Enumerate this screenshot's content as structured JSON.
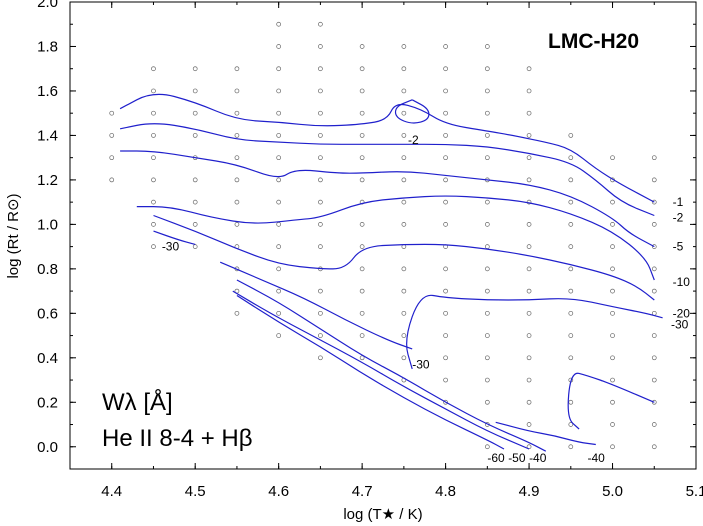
{
  "chart_data": {
    "type": "contour",
    "title": "LMC-H20",
    "xlabel": "log (T★ / K)",
    "ylabel": "log (Rt / R⊙)",
    "xlim": [
      4.35,
      5.1
    ],
    "ylim": [
      -0.1,
      2.0
    ],
    "x_ticks": [
      "4.4",
      "4.5",
      "4.6",
      "4.7",
      "4.8",
      "4.9",
      "5.0",
      "5.1"
    ],
    "y_ticks": [
      "0.0",
      "0.2",
      "0.4",
      "0.6",
      "0.8",
      "1.0",
      "1.2",
      "1.4",
      "1.6",
      "1.8",
      "2.0"
    ],
    "legend": {
      "line1": "Wλ  [Å]",
      "line2": "He II 8-4 + Hβ"
    },
    "contour_color": "#2020cc",
    "grid_points": [
      [
        4.65,
        1.9
      ],
      [
        4.6,
        1.9
      ],
      [
        4.85,
        1.8
      ],
      [
        4.8,
        1.8
      ],
      [
        4.75,
        1.8
      ],
      [
        4.7,
        1.8
      ],
      [
        4.65,
        1.8
      ],
      [
        4.6,
        1.8
      ],
      [
        4.9,
        1.7
      ],
      [
        4.85,
        1.7
      ],
      [
        4.8,
        1.7
      ],
      [
        4.75,
        1.7
      ],
      [
        4.7,
        1.7
      ],
      [
        4.65,
        1.7
      ],
      [
        4.6,
        1.7
      ],
      [
        4.55,
        1.7
      ],
      [
        4.5,
        1.7
      ],
      [
        4.45,
        1.7
      ],
      [
        4.9,
        1.6
      ],
      [
        4.85,
        1.6
      ],
      [
        4.8,
        1.6
      ],
      [
        4.75,
        1.6
      ],
      [
        4.7,
        1.6
      ],
      [
        4.65,
        1.6
      ],
      [
        4.6,
        1.6
      ],
      [
        4.55,
        1.6
      ],
      [
        4.5,
        1.6
      ],
      [
        4.45,
        1.6
      ],
      [
        4.9,
        1.5
      ],
      [
        4.85,
        1.5
      ],
      [
        4.8,
        1.5
      ],
      [
        4.75,
        1.5
      ],
      [
        4.7,
        1.5
      ],
      [
        4.65,
        1.5
      ],
      [
        4.6,
        1.5
      ],
      [
        4.55,
        1.5
      ],
      [
        4.5,
        1.5
      ],
      [
        4.45,
        1.5
      ],
      [
        4.4,
        1.5
      ],
      [
        4.95,
        1.4
      ],
      [
        4.9,
        1.4
      ],
      [
        4.85,
        1.4
      ],
      [
        4.8,
        1.4
      ],
      [
        4.75,
        1.4
      ],
      [
        4.7,
        1.4
      ],
      [
        4.65,
        1.4
      ],
      [
        4.6,
        1.4
      ],
      [
        4.55,
        1.4
      ],
      [
        4.5,
        1.4
      ],
      [
        4.45,
        1.4
      ],
      [
        4.4,
        1.4
      ],
      [
        5.05,
        1.3
      ],
      [
        5.0,
        1.3
      ],
      [
        4.95,
        1.3
      ],
      [
        4.9,
        1.3
      ],
      [
        4.85,
        1.3
      ],
      [
        4.8,
        1.3
      ],
      [
        4.75,
        1.3
      ],
      [
        4.7,
        1.3
      ],
      [
        4.65,
        1.3
      ],
      [
        4.6,
        1.3
      ],
      [
        4.55,
        1.3
      ],
      [
        4.5,
        1.3
      ],
      [
        4.45,
        1.3
      ],
      [
        4.4,
        1.3
      ],
      [
        5.05,
        1.2
      ],
      [
        5.0,
        1.2
      ],
      [
        4.95,
        1.2
      ],
      [
        4.9,
        1.2
      ],
      [
        4.85,
        1.2
      ],
      [
        4.8,
        1.2
      ],
      [
        4.75,
        1.2
      ],
      [
        4.7,
        1.2
      ],
      [
        4.65,
        1.2
      ],
      [
        4.6,
        1.2
      ],
      [
        4.55,
        1.2
      ],
      [
        4.5,
        1.2
      ],
      [
        4.45,
        1.2
      ],
      [
        4.4,
        1.2
      ],
      [
        5.05,
        1.1
      ],
      [
        5.0,
        1.1
      ],
      [
        4.95,
        1.1
      ],
      [
        4.9,
        1.1
      ],
      [
        4.85,
        1.1
      ],
      [
        4.8,
        1.1
      ],
      [
        4.75,
        1.1
      ],
      [
        4.7,
        1.1
      ],
      [
        4.65,
        1.1
      ],
      [
        4.6,
        1.1
      ],
      [
        4.55,
        1.1
      ],
      [
        4.5,
        1.1
      ],
      [
        4.45,
        1.1
      ],
      [
        5.05,
        1.0
      ],
      [
        5.0,
        1.0
      ],
      [
        4.95,
        1.0
      ],
      [
        4.9,
        1.0
      ],
      [
        4.85,
        1.0
      ],
      [
        4.8,
        1.0
      ],
      [
        4.75,
        1.0
      ],
      [
        4.7,
        1.0
      ],
      [
        4.65,
        1.0
      ],
      [
        4.6,
        1.0
      ],
      [
        4.55,
        1.0
      ],
      [
        4.5,
        1.0
      ],
      [
        4.45,
        1.0
      ],
      [
        5.05,
        0.9
      ],
      [
        5.0,
        0.9
      ],
      [
        4.95,
        0.9
      ],
      [
        4.9,
        0.9
      ],
      [
        4.85,
        0.9
      ],
      [
        4.8,
        0.9
      ],
      [
        4.75,
        0.9
      ],
      [
        4.7,
        0.9
      ],
      [
        4.65,
        0.9
      ],
      [
        4.6,
        0.9
      ],
      [
        4.55,
        0.9
      ],
      [
        4.5,
        0.9
      ],
      [
        4.45,
        0.9
      ],
      [
        5.05,
        0.8
      ],
      [
        5.0,
        0.8
      ],
      [
        4.95,
        0.8
      ],
      [
        4.9,
        0.8
      ],
      [
        4.85,
        0.8
      ],
      [
        4.8,
        0.8
      ],
      [
        4.75,
        0.8
      ],
      [
        4.7,
        0.8
      ],
      [
        4.65,
        0.8
      ],
      [
        4.6,
        0.8
      ],
      [
        4.55,
        0.8
      ],
      [
        5.05,
        0.7
      ],
      [
        5.0,
        0.7
      ],
      [
        4.95,
        0.7
      ],
      [
        4.9,
        0.7
      ],
      [
        4.85,
        0.7
      ],
      [
        4.8,
        0.7
      ],
      [
        4.75,
        0.7
      ],
      [
        4.7,
        0.7
      ],
      [
        4.65,
        0.7
      ],
      [
        4.6,
        0.7
      ],
      [
        4.55,
        0.7
      ],
      [
        5.05,
        0.6
      ],
      [
        5.0,
        0.6
      ],
      [
        4.95,
        0.6
      ],
      [
        4.9,
        0.6
      ],
      [
        4.85,
        0.6
      ],
      [
        4.8,
        0.6
      ],
      [
        4.75,
        0.6
      ],
      [
        4.7,
        0.6
      ],
      [
        4.65,
        0.6
      ],
      [
        4.6,
        0.6
      ],
      [
        4.55,
        0.6
      ],
      [
        5.05,
        0.5
      ],
      [
        5.0,
        0.5
      ],
      [
        4.95,
        0.5
      ],
      [
        4.9,
        0.5
      ],
      [
        4.85,
        0.5
      ],
      [
        4.8,
        0.5
      ],
      [
        4.75,
        0.5
      ],
      [
        4.7,
        0.5
      ],
      [
        4.65,
        0.5
      ],
      [
        4.6,
        0.5
      ],
      [
        5.05,
        0.4
      ],
      [
        5.0,
        0.4
      ],
      [
        4.95,
        0.4
      ],
      [
        4.9,
        0.4
      ],
      [
        4.85,
        0.4
      ],
      [
        4.8,
        0.4
      ],
      [
        4.75,
        0.4
      ],
      [
        4.7,
        0.4
      ],
      [
        4.65,
        0.4
      ],
      [
        5.05,
        0.3
      ],
      [
        5.0,
        0.3
      ],
      [
        4.95,
        0.3
      ],
      [
        4.9,
        0.3
      ],
      [
        4.85,
        0.3
      ],
      [
        4.8,
        0.3
      ],
      [
        4.75,
        0.3
      ],
      [
        5.05,
        0.2
      ],
      [
        5.0,
        0.2
      ],
      [
        4.95,
        0.2
      ],
      [
        4.9,
        0.2
      ],
      [
        4.85,
        0.2
      ],
      [
        4.8,
        0.2
      ],
      [
        5.05,
        0.1
      ],
      [
        5.0,
        0.1
      ],
      [
        4.95,
        0.1
      ],
      [
        4.9,
        0.1
      ],
      [
        4.85,
        0.1
      ],
      [
        5.05,
        0.0
      ],
      [
        5.0,
        0.0
      ],
      [
        4.95,
        0.0
      ],
      [
        4.9,
        0.0
      ],
      [
        4.85,
        0.0
      ]
    ],
    "contours": [
      {
        "label": "-1",
        "label_at": [
          5.072,
          1.1
        ],
        "points": [
          [
            4.41,
            1.52
          ],
          [
            4.45,
            1.6
          ],
          [
            4.5,
            1.55
          ],
          [
            4.55,
            1.47
          ],
          [
            4.6,
            1.46
          ],
          [
            4.65,
            1.44
          ],
          [
            4.7,
            1.45
          ],
          [
            4.73,
            1.47
          ],
          [
            4.74,
            1.55
          ],
          [
            4.77,
            1.52
          ],
          [
            4.8,
            1.45
          ],
          [
            4.85,
            1.42
          ],
          [
            4.88,
            1.4
          ],
          [
            4.92,
            1.37
          ],
          [
            4.95,
            1.34
          ],
          [
            4.98,
            1.25
          ],
          [
            5.01,
            1.18
          ],
          [
            5.05,
            1.1
          ]
        ]
      },
      {
        "label": "-2",
        "label_at": [
          4.755,
          1.38
        ],
        "points": [
          [
            4.76,
            1.56
          ],
          [
            4.78,
            1.52
          ],
          [
            4.78,
            1.47
          ],
          [
            4.76,
            1.45
          ],
          [
            4.74,
            1.48
          ],
          [
            4.74,
            1.53
          ],
          [
            4.76,
            1.56
          ]
        ]
      },
      {
        "label": "-2",
        "label_at": [
          5.072,
          1.03
        ],
        "points": [
          [
            4.41,
            1.43
          ],
          [
            4.45,
            1.46
          ],
          [
            4.5,
            1.43
          ],
          [
            4.55,
            1.38
          ],
          [
            4.6,
            1.37
          ],
          [
            4.65,
            1.36
          ],
          [
            4.7,
            1.36
          ],
          [
            4.75,
            1.36
          ],
          [
            4.8,
            1.36
          ],
          [
            4.85,
            1.35
          ],
          [
            4.9,
            1.32
          ],
          [
            4.95,
            1.28
          ],
          [
            4.98,
            1.2
          ],
          [
            5.01,
            1.1
          ],
          [
            5.05,
            1.04
          ]
        ]
      },
      {
        "label": "-5",
        "label_at": [
          5.072,
          0.9
        ],
        "points": [
          [
            4.41,
            1.33
          ],
          [
            4.45,
            1.33
          ],
          [
            4.5,
            1.3
          ],
          [
            4.55,
            1.27
          ],
          [
            4.6,
            1.2
          ],
          [
            4.62,
            1.25
          ],
          [
            4.67,
            1.23
          ],
          [
            4.7,
            1.23
          ],
          [
            4.75,
            1.24
          ],
          [
            4.8,
            1.22
          ],
          [
            4.85,
            1.2
          ],
          [
            4.9,
            1.18
          ],
          [
            4.95,
            1.13
          ],
          [
            5.0,
            1.03
          ],
          [
            5.02,
            0.96
          ],
          [
            5.05,
            0.9
          ]
        ]
      },
      {
        "label": "-10",
        "label_at": [
          5.072,
          0.74
        ],
        "points": [
          [
            4.43,
            1.08
          ],
          [
            4.47,
            1.08
          ],
          [
            4.52,
            1.03
          ],
          [
            4.57,
            1.0
          ],
          [
            4.62,
            1.02
          ],
          [
            4.65,
            1.03
          ],
          [
            4.7,
            1.1
          ],
          [
            4.75,
            1.12
          ],
          [
            4.8,
            1.13
          ],
          [
            4.85,
            1.12
          ],
          [
            4.9,
            1.1
          ],
          [
            4.95,
            1.05
          ],
          [
            5.0,
            0.97
          ],
          [
            5.04,
            0.85
          ],
          [
            5.05,
            0.75
          ]
        ]
      },
      {
        "label": "-20",
        "label_at": [
          5.072,
          0.6
        ],
        "points": [
          [
            4.45,
            1.04
          ],
          [
            4.5,
            0.97
          ],
          [
            4.55,
            0.89
          ],
          [
            4.6,
            0.82
          ],
          [
            4.65,
            0.8
          ],
          [
            4.68,
            0.8
          ],
          [
            4.7,
            0.9
          ],
          [
            4.75,
            0.91
          ],
          [
            4.8,
            0.91
          ],
          [
            4.85,
            0.89
          ],
          [
            4.9,
            0.86
          ],
          [
            4.95,
            0.82
          ],
          [
            5.0,
            0.77
          ],
          [
            5.03,
            0.72
          ],
          [
            5.05,
            0.66
          ]
        ]
      },
      {
        "label": "-30",
        "label_at": [
          4.46,
          0.9
        ],
        "points": [
          [
            4.45,
            0.97
          ],
          [
            4.48,
            0.93
          ],
          [
            4.5,
            0.91
          ]
        ]
      },
      {
        "label": "-30",
        "label_at": [
          5.07,
          0.55
        ],
        "points": [
          [
            4.76,
            0.35
          ],
          [
            4.75,
            0.48
          ],
          [
            4.77,
            0.69
          ],
          [
            4.8,
            0.67
          ],
          [
            4.85,
            0.66
          ],
          [
            4.9,
            0.66
          ],
          [
            4.95,
            0.67
          ],
          [
            5.0,
            0.63
          ],
          [
            5.04,
            0.6
          ],
          [
            5.06,
            0.58
          ]
        ]
      },
      {
        "label": "-30",
        "label_at": [
          4.76,
          0.37
        ],
        "points": [
          [
            4.53,
            0.83
          ],
          [
            4.58,
            0.75
          ],
          [
            4.63,
            0.67
          ],
          [
            4.68,
            0.57
          ],
          [
            4.73,
            0.48
          ],
          [
            4.76,
            0.44
          ]
        ]
      },
      {
        "label": "-40",
        "label_at": [
          4.9,
          -0.05
        ],
        "points": [
          [
            4.55,
            0.75
          ],
          [
            4.6,
            0.65
          ],
          [
            4.65,
            0.53
          ],
          [
            4.7,
            0.41
          ],
          [
            4.75,
            0.31
          ],
          [
            4.8,
            0.2
          ],
          [
            4.85,
            0.1
          ],
          [
            4.9,
            0.02
          ],
          [
            4.92,
            -0.02
          ]
        ]
      },
      {
        "label": "-50",
        "label_at": [
          4.875,
          -0.05
        ],
        "points": [
          [
            4.545,
            0.7
          ],
          [
            4.59,
            0.6
          ],
          [
            4.64,
            0.5
          ],
          [
            4.7,
            0.38
          ],
          [
            4.75,
            0.27
          ],
          [
            4.8,
            0.17
          ],
          [
            4.85,
            0.07
          ],
          [
            4.9,
            -0.01
          ]
        ]
      },
      {
        "label": "-60",
        "label_at": [
          4.85,
          -0.05
        ],
        "points": [
          [
            4.55,
            0.68
          ],
          [
            4.6,
            0.56
          ],
          [
            4.65,
            0.45
          ],
          [
            4.7,
            0.33
          ],
          [
            4.75,
            0.22
          ],
          [
            4.8,
            0.12
          ],
          [
            4.85,
            0.03
          ],
          [
            4.87,
            -0.01
          ]
        ]
      },
      {
        "label": "-40",
        "label_at": [
          4.97,
          -0.05
        ],
        "points": [
          [
            4.96,
            0.08
          ],
          [
            4.945,
            0.13
          ],
          [
            4.95,
            0.34
          ],
          [
            4.97,
            0.32
          ],
          [
            5.0,
            0.28
          ],
          [
            5.05,
            0.2
          ]
        ]
      },
      {
        "label": "",
        "label_at": null,
        "points": [
          [
            4.86,
            0.11
          ],
          [
            4.9,
            0.07
          ],
          [
            4.93,
            0.05
          ],
          [
            4.96,
            0.02
          ],
          [
            4.98,
            0.01
          ]
        ]
      }
    ]
  }
}
